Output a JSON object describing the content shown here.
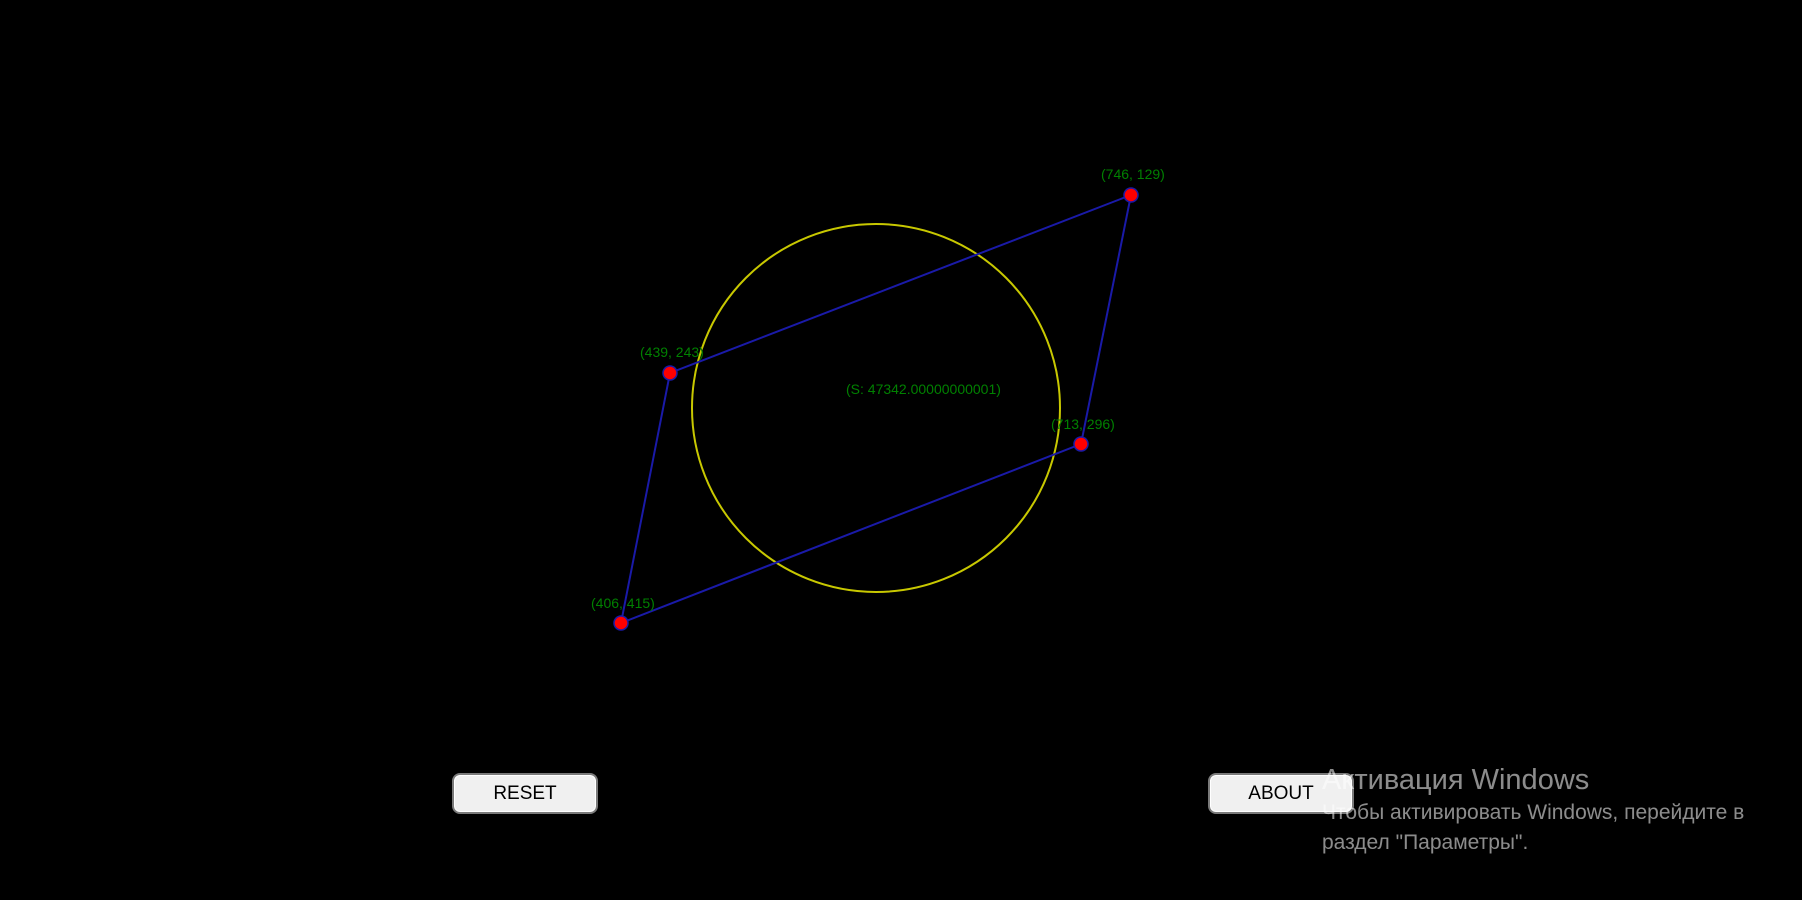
{
  "colors": {
    "background": "#000000",
    "circle": "#c8c800",
    "edges": "#1a1aa8",
    "points": "#ff0000",
    "labels": "#008000"
  },
  "points": [
    {
      "id": "p1",
      "label": "(746, 129)"
    },
    {
      "id": "p2",
      "label": "(439, 243)"
    },
    {
      "id": "p3",
      "label": "(713, 296)"
    },
    {
      "id": "p4",
      "label": "(406, 415)"
    }
  ],
  "area_label": "(S: 47342.00000000001)",
  "buttons": {
    "reset": "RESET",
    "about": "ABOUT"
  },
  "watermark": {
    "title": "Активация Windows",
    "line1": "Чтобы активировать Windows, перейдите в",
    "line2": "раздел \"Параметры\"."
  }
}
